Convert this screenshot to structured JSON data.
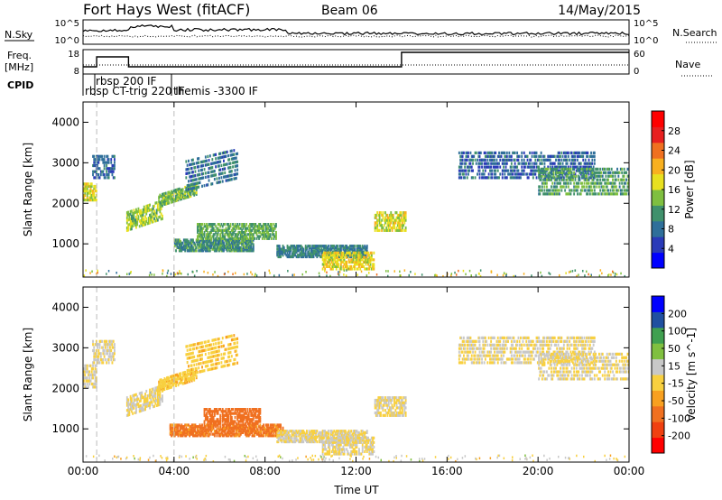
{
  "header": {
    "title": "Fort Hays West (fitACF)",
    "beam": "Beam 06",
    "date": "14/May/2015"
  },
  "colors": {
    "trace": "#000000",
    "ground_scatter": "#c8c8c8",
    "background": "#ffffff"
  },
  "noise_panel": {
    "left_label": "N.Sky",
    "right_label": "N.Search",
    "left_ticks": [
      "10^5",
      "10^0"
    ],
    "right_ticks": [
      "10^5",
      "10^0"
    ]
  },
  "freq_panel": {
    "left_label_1": "Freq.",
    "left_label_2": "[MHz]",
    "right_label": "Nave",
    "left_ticks": [
      "18",
      "8"
    ],
    "right_ticks": [
      "60",
      "0"
    ]
  },
  "cpid": {
    "label": "CPID",
    "entries": [
      "rbsp 200 IF",
      "rbsp CT-trig 220 IF",
      "themis -3300 IF"
    ]
  },
  "chart_data": [
    {
      "type": "heatmap",
      "name": "power",
      "ylabel": "Slant Range [km]",
      "xlabel": "Time UT",
      "x_ticks": [
        "00:00",
        "04:00",
        "08:00",
        "12:00",
        "16:00",
        "20:00",
        "00:00"
      ],
      "y_ticks": [
        "1000",
        "2000",
        "3000",
        "4000"
      ],
      "xlim": [
        0,
        24
      ],
      "ylim": [
        180,
        4500
      ],
      "colorbar": {
        "label": "Power [dB]",
        "ticks": [
          "28",
          "24",
          "20",
          "16",
          "12",
          "8",
          "4"
        ],
        "range": [
          0,
          30
        ],
        "colors": [
          "#0000ff",
          "#2a3ab8",
          "#2f6f9a",
          "#40916c",
          "#7fbf40",
          "#e8e020",
          "#f8b020",
          "#f07020",
          "#e82020",
          "#ff0000"
        ]
      },
      "bands": [
        {
          "t": [
            0.0,
            0.6
          ],
          "r": [
            2050,
            2500
          ],
          "v": 16
        },
        {
          "t": [
            0.4,
            1.4
          ],
          "r": [
            2600,
            3200
          ],
          "v": 7
        },
        {
          "t": [
            1.9,
            3.5
          ],
          "r": [
            1300,
            1800
          ],
          "v": 14
        },
        {
          "t": [
            3.3,
            5.0
          ],
          "r": [
            1900,
            2200
          ],
          "v": 13
        },
        {
          "t": [
            4.5,
            6.8
          ],
          "r": [
            2300,
            3100
          ],
          "v": 8
        },
        {
          "t": [
            4.0,
            7.5
          ],
          "r": [
            800,
            1100
          ],
          "v": 10
        },
        {
          "t": [
            5.0,
            8.5
          ],
          "r": [
            1100,
            1500
          ],
          "v": 12
        },
        {
          "t": [
            8.5,
            12.5
          ],
          "r": [
            650,
            950
          ],
          "v": 9
        },
        {
          "t": [
            10.5,
            12.8
          ],
          "r": [
            350,
            800
          ],
          "v": 17
        },
        {
          "t": [
            12.8,
            14.2
          ],
          "r": [
            1300,
            1800
          ],
          "v": 16
        },
        {
          "t": [
            16.5,
            22.5
          ],
          "r": [
            2600,
            3300
          ],
          "v": 7
        },
        {
          "t": [
            20.0,
            24.0
          ],
          "r": [
            2200,
            2900
          ],
          "v": 11
        }
      ]
    },
    {
      "type": "heatmap",
      "name": "velocity",
      "ylabel": "Slant Range [km]",
      "xlabel": "Time UT",
      "x_ticks": [
        "00:00",
        "04:00",
        "08:00",
        "12:00",
        "16:00",
        "20:00",
        "00:00"
      ],
      "y_ticks": [
        "1000",
        "2000",
        "3000",
        "4000"
      ],
      "xlim": [
        0,
        24
      ],
      "ylim": [
        180,
        4500
      ],
      "colorbar": {
        "label": "Velocity [m s^-1]",
        "ticks": [
          "200",
          "100",
          "50",
          "15",
          "-15",
          "-50",
          "-100",
          "-200"
        ],
        "range": [
          -250,
          250
        ],
        "colors": [
          "#ff0000",
          "#f04010",
          "#f07020",
          "#f8a020",
          "#f8d040",
          "#c8c8c8",
          "#80c040",
          "#40a050",
          "#2050a0",
          "#0000ff"
        ]
      },
      "bands": [
        {
          "t": [
            0.0,
            0.6
          ],
          "r": [
            2000,
            2600
          ],
          "v": 0
        },
        {
          "t": [
            0.4,
            1.4
          ],
          "r": [
            2600,
            3200
          ],
          "v": 0
        },
        {
          "t": [
            1.9,
            3.5
          ],
          "r": [
            1300,
            1800
          ],
          "v": 0
        },
        {
          "t": [
            3.3,
            5.0
          ],
          "r": [
            1900,
            2200
          ],
          "v": -40
        },
        {
          "t": [
            4.5,
            6.8
          ],
          "r": [
            2300,
            3100
          ],
          "v": -40
        },
        {
          "t": [
            3.8,
            8.8
          ],
          "r": [
            800,
            1100
          ],
          "v": -110
        },
        {
          "t": [
            5.3,
            7.8
          ],
          "r": [
            1100,
            1500
          ],
          "v": -120
        },
        {
          "t": [
            8.5,
            12.5
          ],
          "r": [
            650,
            950
          ],
          "v": 0
        },
        {
          "t": [
            10.5,
            12.8
          ],
          "r": [
            350,
            800
          ],
          "v": 0
        },
        {
          "t": [
            12.8,
            14.2
          ],
          "r": [
            1300,
            1800
          ],
          "v": 0
        },
        {
          "t": [
            16.5,
            22.5
          ],
          "r": [
            2600,
            3300
          ],
          "v": 0
        },
        {
          "t": [
            20.0,
            24.0
          ],
          "r": [
            2200,
            2900
          ],
          "v": 0
        }
      ]
    }
  ]
}
